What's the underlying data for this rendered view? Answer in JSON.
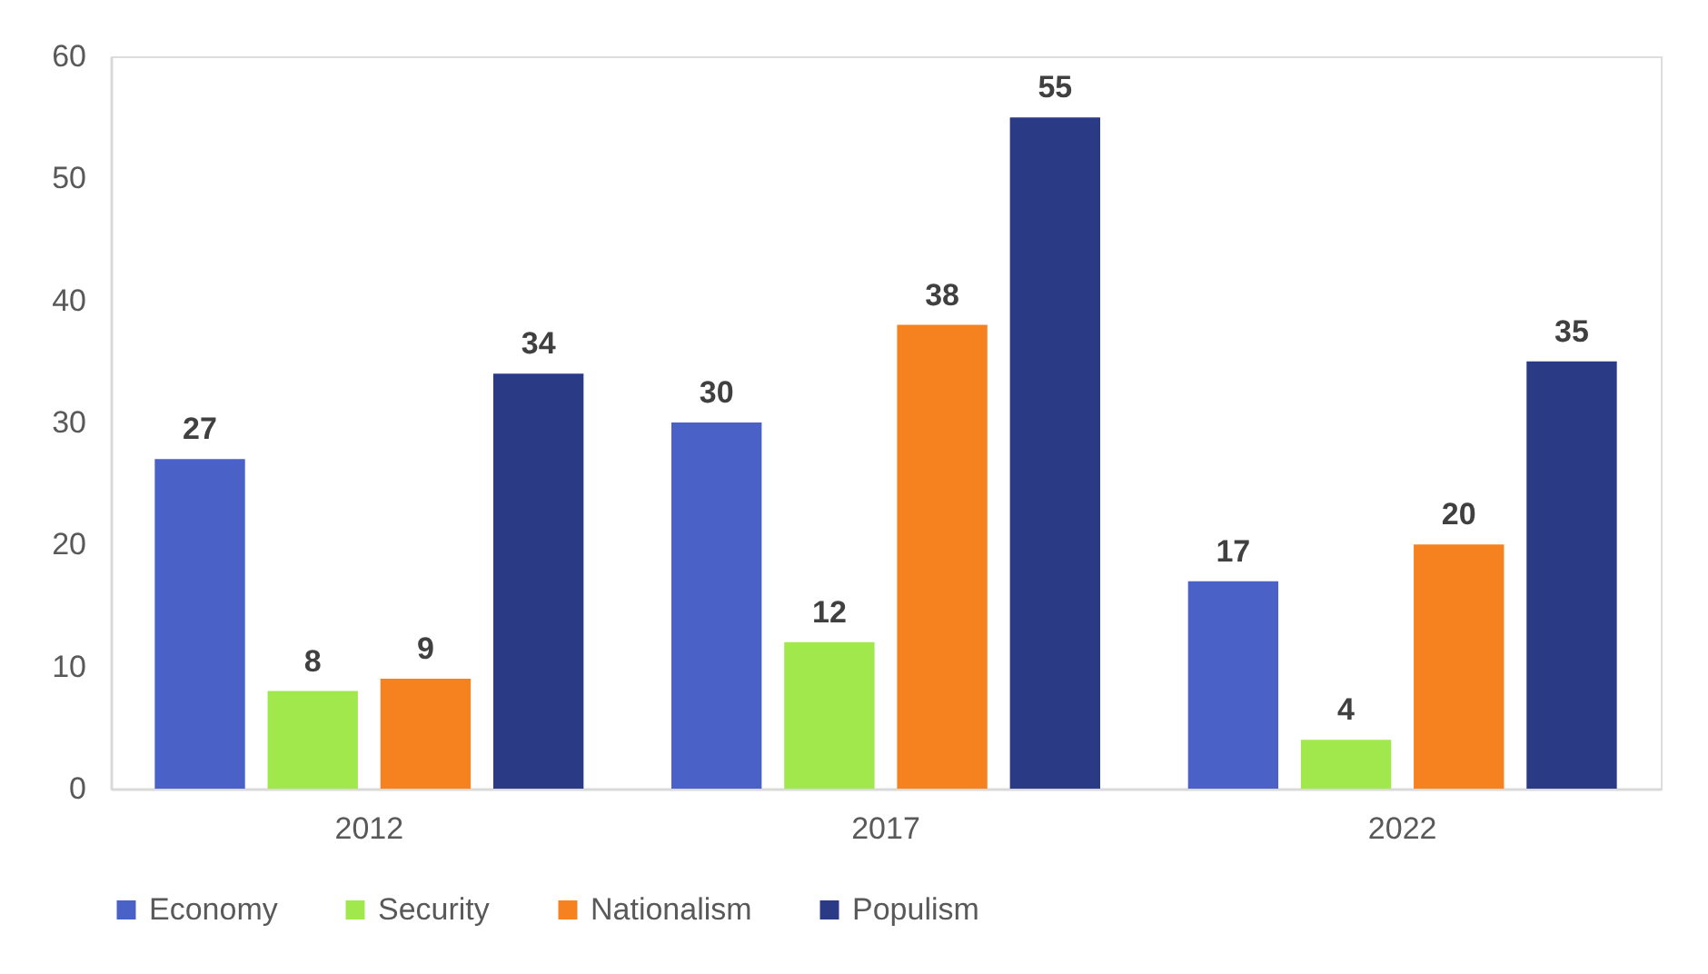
{
  "chart_data": {
    "type": "bar",
    "categories": [
      "2012",
      "2017",
      "2022"
    ],
    "series": [
      {
        "name": "Economy",
        "color": "#4a62c8",
        "values": [
          27,
          30,
          17
        ]
      },
      {
        "name": "Security",
        "color": "#a0e84c",
        "values": [
          8,
          12,
          4
        ]
      },
      {
        "name": "Nationalism",
        "color": "#f5821f",
        "values": [
          9,
          38,
          20
        ]
      },
      {
        "name": "Populism",
        "color": "#2a3a85",
        "values": [
          34,
          55,
          35
        ]
      }
    ],
    "ylim": [
      0,
      60
    ],
    "yticks": [
      0,
      10,
      20,
      30,
      40,
      50,
      60
    ],
    "data_labels": true,
    "legend": "bottom"
  }
}
